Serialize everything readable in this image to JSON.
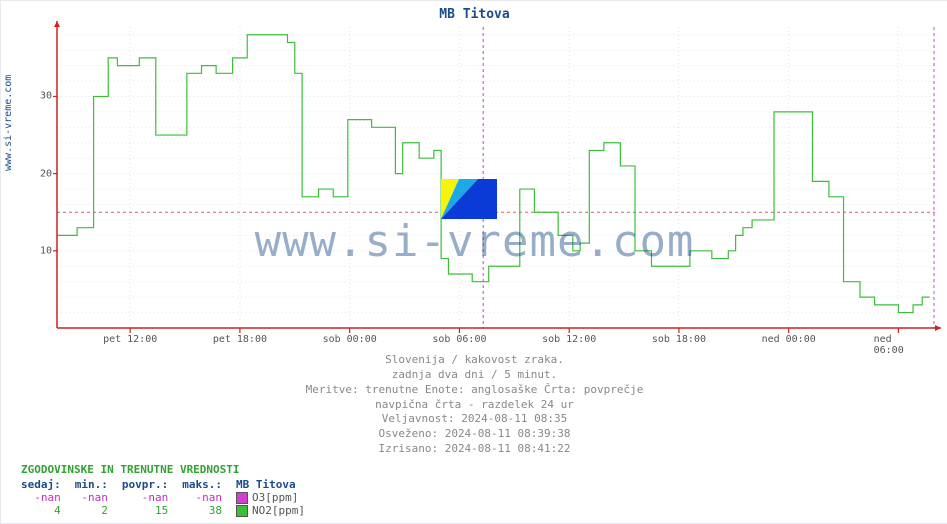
{
  "title": "MB Titova",
  "ylabel_side": "www.si-vreme.com",
  "watermark": "www.si-vreme.com",
  "chart": {
    "type": "line-step",
    "xlim": [
      0,
      48
    ],
    "ylim": [
      0,
      39
    ],
    "ytick_values": [
      10,
      20,
      30
    ],
    "yminor_step": 2,
    "hline_value": 15,
    "hline_color": "#cc6666",
    "hline_dash": "3,3",
    "vline_x": 23.3,
    "vline_color": "#d040d0",
    "vline_dash": "3,3",
    "grid_color": "#e6e6e6",
    "grid_dash": "1,3",
    "axis_color": "#d02020",
    "end_vline_color": "#d040d0",
    "series_no2": {
      "color": "#3bbf3b",
      "stroke_width": 1.2,
      "points_x": [
        0,
        0.3,
        0.7,
        1.1,
        1.6,
        2.0,
        2.4,
        2.8,
        3.3,
        3.7,
        4.1,
        4.5,
        4.9,
        5.4,
        5.8,
        6.2,
        6.6,
        7.1,
        7.5,
        7.9,
        8.3,
        8.7,
        9.2,
        9.6,
        10.0,
        10.4,
        10.9,
        11.3,
        11.7,
        12.1,
        12.6,
        13.0,
        13.4,
        13.8,
        14.3,
        14.7,
        15.1,
        15.5,
        15.9,
        16.4,
        16.8,
        17.2,
        17.6,
        18.1,
        18.5,
        18.9,
        19.3,
        19.8,
        20.2,
        20.6,
        21.0,
        21.4,
        21.9,
        22.3,
        22.7,
        23.1,
        23.6,
        24.0,
        24.4,
        24.8,
        25.3,
        25.7,
        26.1,
        26.5,
        27.0,
        27.4,
        27.8,
        28.2,
        28.6,
        29.1,
        29.5,
        29.9,
        30.3,
        30.8,
        31.2,
        31.6,
        32.0,
        32.5,
        32.9,
        33.3,
        33.7,
        34.1,
        34.6,
        35.0,
        35.4,
        35.8,
        36.3,
        36.7,
        37.1,
        37.5,
        38.0,
        38.4,
        38.8,
        39.2,
        39.7,
        40.1,
        40.5,
        40.9,
        41.3,
        41.8,
        42.2,
        42.6,
        43.0,
        43.5,
        43.9,
        44.3,
        44.7,
        45.2,
        45.6,
        46.0,
        46.4,
        46.8,
        47.3,
        47.7
      ],
      "points_y": [
        12,
        12,
        12,
        13,
        13,
        30,
        30,
        35,
        34,
        34,
        34,
        35,
        35,
        25,
        25,
        25,
        25,
        33,
        33,
        34,
        34,
        33,
        33,
        35,
        35,
        38,
        38,
        38,
        38,
        38,
        37,
        33,
        17,
        17,
        18,
        18,
        17,
        17,
        27,
        27,
        27,
        26,
        26,
        26,
        20,
        24,
        24,
        22,
        22,
        23,
        9,
        7,
        7,
        7,
        6,
        6,
        8,
        8,
        8,
        8,
        18,
        18,
        15,
        15,
        15,
        12,
        12,
        10,
        11,
        23,
        23,
        24,
        24,
        21,
        21,
        10,
        10,
        8,
        8,
        8,
        8,
        8,
        10,
        10,
        10,
        9,
        9,
        10,
        12,
        13,
        14,
        14,
        14,
        28,
        28,
        28,
        28,
        28,
        19,
        19,
        17,
        17,
        6,
        6,
        4,
        4,
        3,
        3,
        3,
        2,
        2,
        3,
        4,
        4
      ]
    },
    "xticks": [
      {
        "x": 4,
        "label": "pet 12:00"
      },
      {
        "x": 10,
        "label": "pet 18:00"
      },
      {
        "x": 16,
        "label": "sob 00:00"
      },
      {
        "x": 22,
        "label": "sob 06:00"
      },
      {
        "x": 28,
        "label": "sob 12:00"
      },
      {
        "x": 34,
        "label": "sob 18:00"
      },
      {
        "x": 40,
        "label": "ned 00:00"
      },
      {
        "x": 46,
        "label": "ned 06:00"
      }
    ],
    "background_color": "#ffffff",
    "wm_logo_colors": [
      "#f5f50a",
      "#1fa8e8",
      "#0a3bd6"
    ]
  },
  "meta_lines": [
    "Slovenija / kakovost zraka.",
    "zadnja dva dni / 5 minut.",
    "Meritve: trenutne  Enote: anglosaške  Črta: povprečje",
    "navpična črta - razdelek 24 ur",
    "Veljavnost: 2024-08-11 08:35",
    "Osveženo: 2024-08-11 08:39:38",
    "Izrisano: 2024-08-11 08:41:22"
  ],
  "history": {
    "heading": "ZGODOVINSKE IN TRENUTNE VREDNOSTI",
    "columns": [
      "sedaj:",
      "min.:",
      "povpr.:",
      "maks.:"
    ],
    "chart_name": "MB Titova",
    "rows": [
      {
        "label": "O3[ppm]",
        "swatch": "#d040d0",
        "vals": [
          "-nan",
          "-nan",
          "-nan",
          "-nan"
        ],
        "color": "#c030c0"
      },
      {
        "label": "NO2[ppm]",
        "swatch": "#3bbf3b",
        "vals": [
          "4",
          "2",
          "15",
          "38"
        ],
        "color": "#34a134"
      }
    ]
  }
}
